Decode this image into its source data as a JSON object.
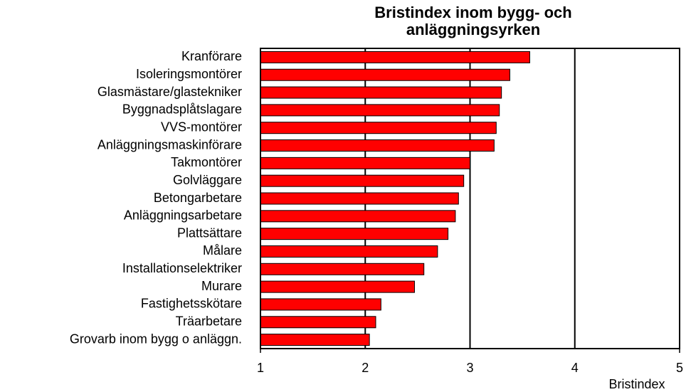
{
  "chart_data": {
    "type": "bar",
    "orientation": "horizontal",
    "title": "Bristindex inom bygg- och anläggningsyrken",
    "x_label": "Bristindex",
    "categories": [
      "Kranförare",
      "Isoleringsmontörer",
      "Glasmästare/glastekniker",
      "Byggnadsplåtslagare",
      "VVS-montörer",
      "Anläggningsmaskinförare",
      "Takmontörer",
      "Golvläggare",
      "Betongarbetare",
      "Anläggningsarbetare",
      "Plattsättare",
      "Målare",
      "Installationselektriker",
      "Murare",
      "Fastighetsskötare",
      "Träarbetare",
      "Grovarb inom bygg o anläggn."
    ],
    "values": [
      3.57,
      3.38,
      3.3,
      3.28,
      3.25,
      3.23,
      3.0,
      2.94,
      2.89,
      2.86,
      2.79,
      2.69,
      2.56,
      2.47,
      2.15,
      2.1,
      2.04
    ],
    "color": "#ff0000",
    "xlim": [
      1,
      5
    ],
    "xticks": [
      1,
      2,
      3,
      4,
      5
    ],
    "grid": true
  }
}
